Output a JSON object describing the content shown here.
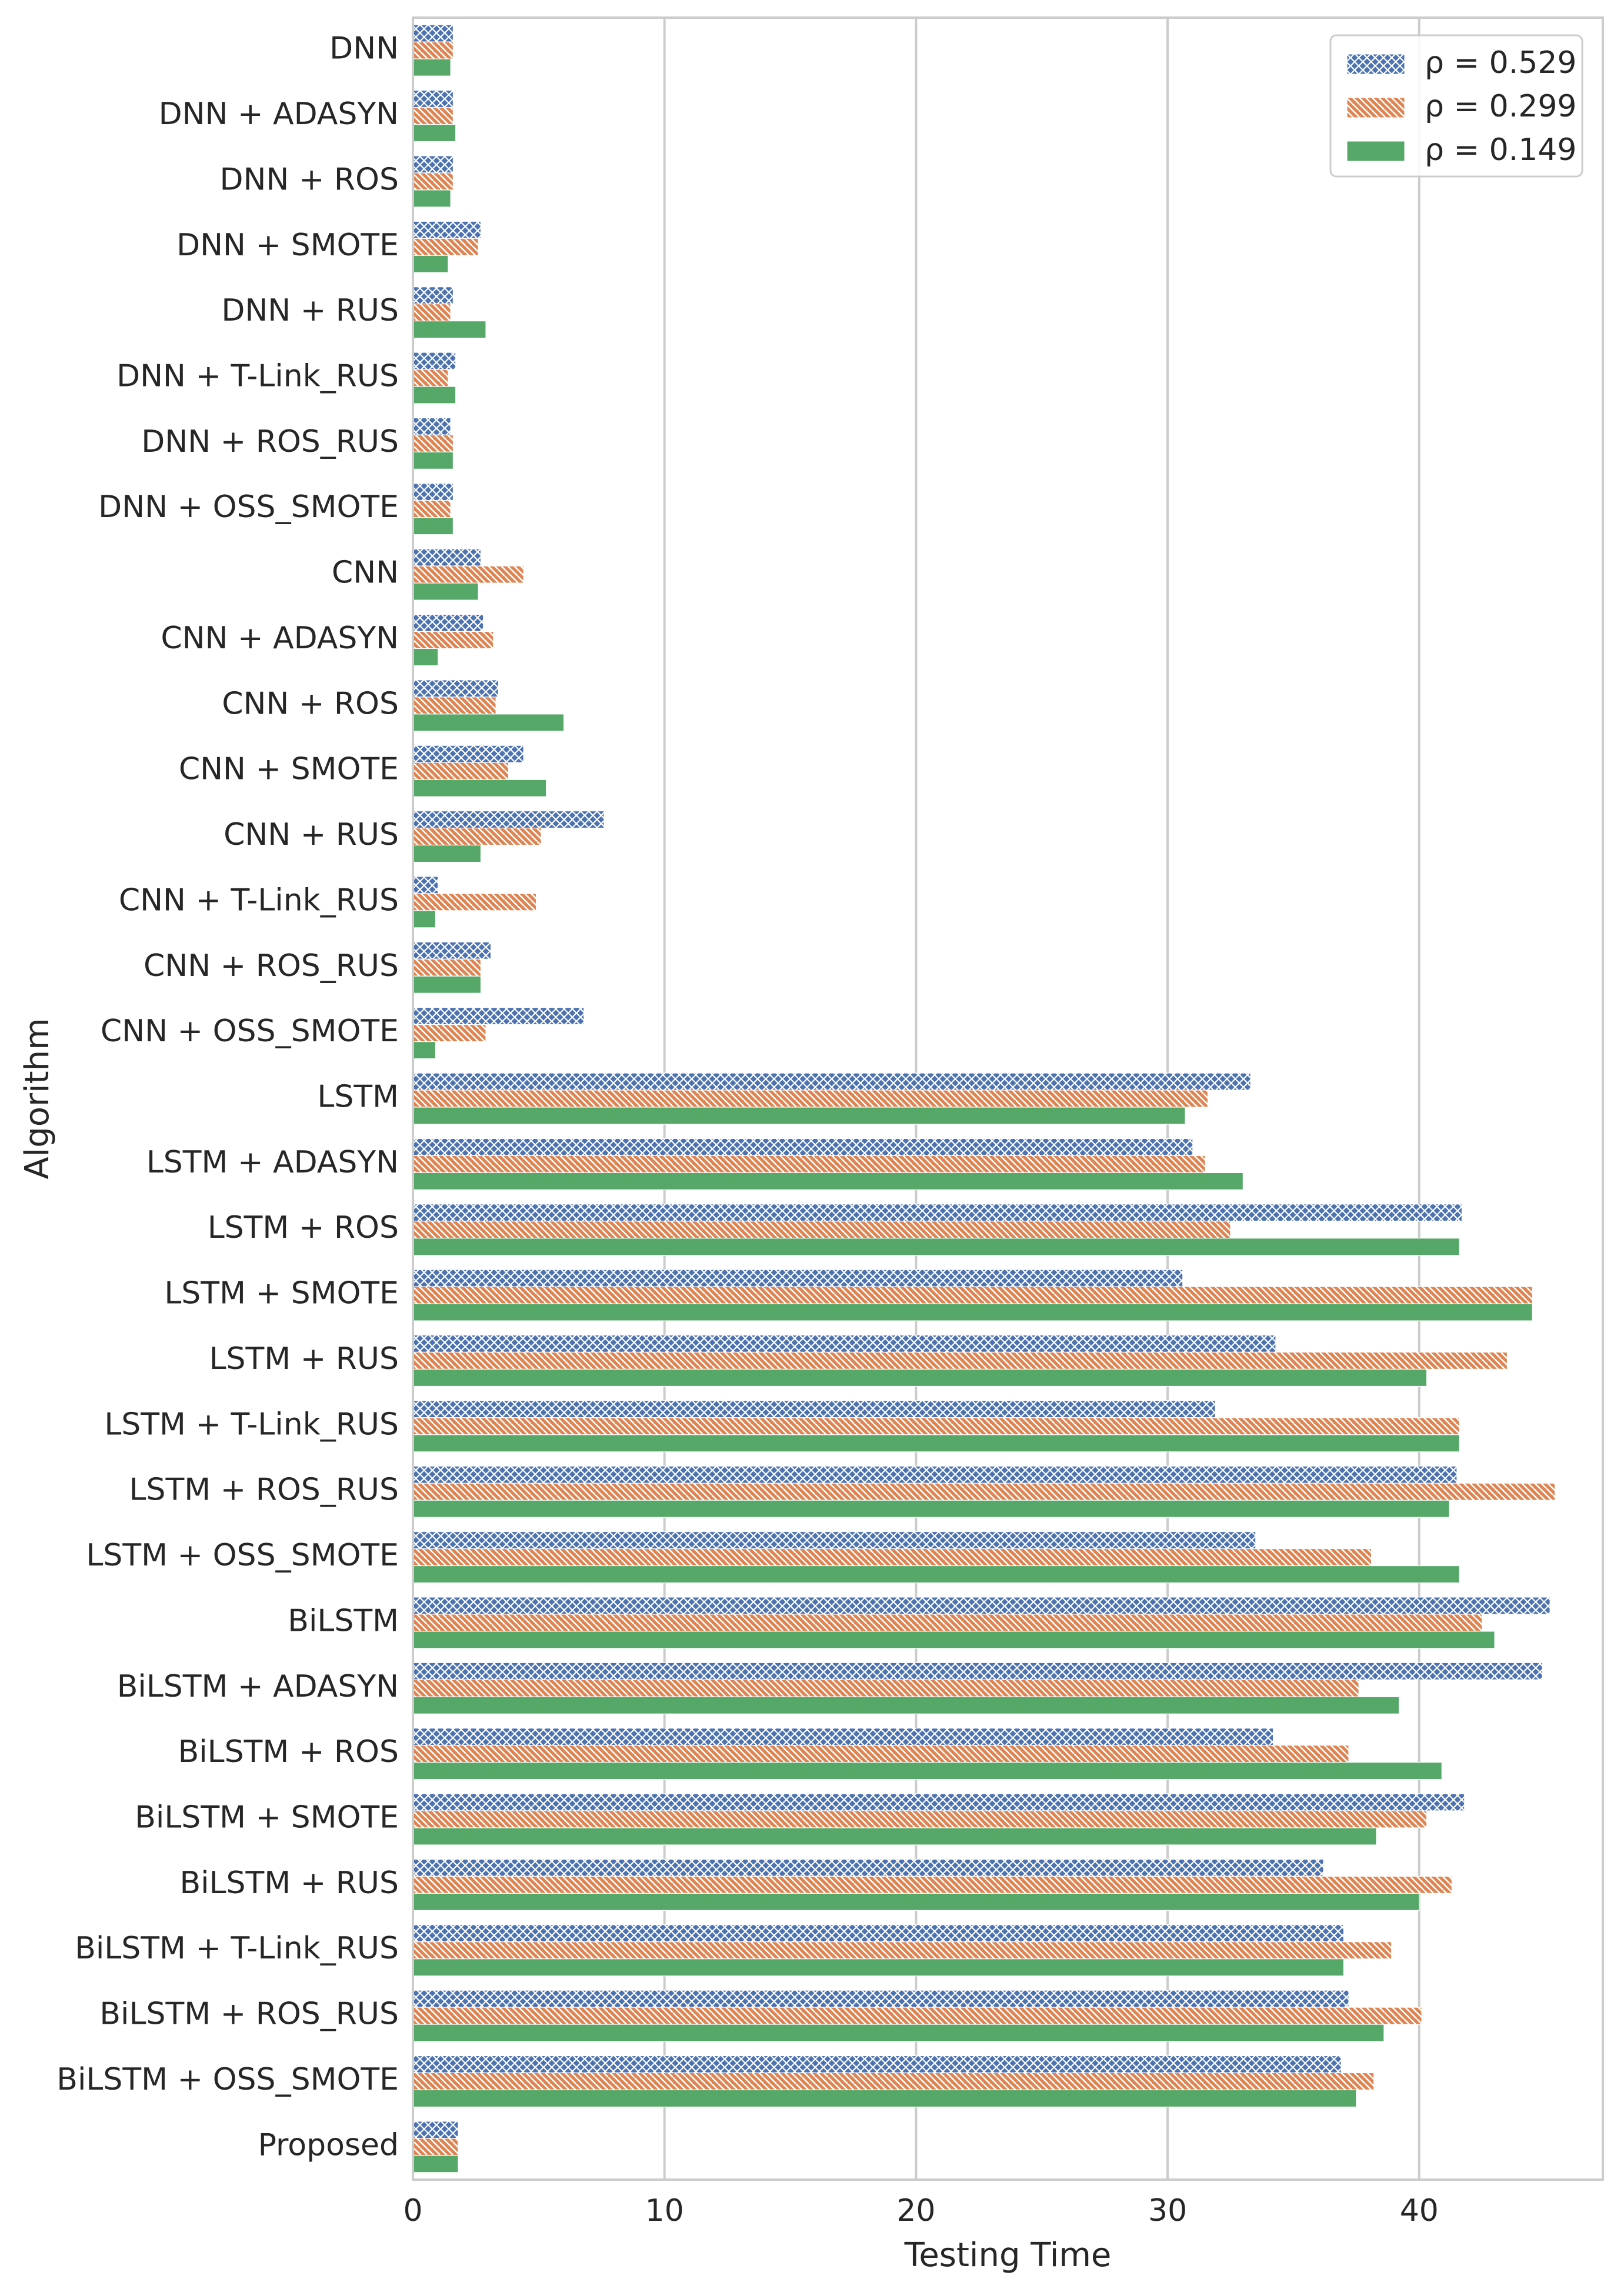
{
  "chart_data": {
    "type": "bar",
    "orientation": "horizontal",
    "xlabel": "Testing Time",
    "ylabel": "Algorithm",
    "xlim": [
      0,
      47.3
    ],
    "xticks": [
      0,
      10,
      20,
      30,
      40
    ],
    "grid": "vertical",
    "legend_position": "top-right",
    "categories": [
      "DNN",
      "DNN + ADASYN",
      "DNN + ROS",
      "DNN + SMOTE",
      "DNN + RUS",
      "DNN + T-Link_RUS",
      "DNN + ROS_RUS",
      "DNN + OSS_SMOTE",
      "CNN",
      "CNN + ADASYN",
      "CNN + ROS",
      "CNN + SMOTE",
      "CNN + RUS",
      "CNN + T-Link_RUS",
      "CNN + ROS_RUS",
      "CNN + OSS_SMOTE",
      "LSTM",
      "LSTM + ADASYN",
      "LSTM + ROS",
      "LSTM + SMOTE",
      "LSTM + RUS",
      "LSTM + T-Link_RUS",
      "LSTM + ROS_RUS",
      "LSTM + OSS_SMOTE",
      "BiLSTM",
      "BiLSTM + ADASYN",
      "BiLSTM + ROS",
      "BiLSTM + SMOTE",
      "BiLSTM + RUS",
      "BiLSTM + T-Link_RUS",
      "BiLSTM + ROS_RUS",
      "BiLSTM + OSS_SMOTE",
      "Proposed"
    ],
    "series": [
      {
        "name": "ρ = 0.529",
        "color": "#4c72b0",
        "pattern": "crosshatch",
        "values": [
          1.6,
          1.6,
          1.6,
          2.7,
          1.6,
          1.7,
          1.5,
          1.6,
          2.7,
          2.8,
          3.4,
          4.4,
          7.6,
          1.0,
          3.1,
          6.8,
          33.3,
          31.0,
          41.7,
          30.6,
          34.3,
          31.9,
          41.5,
          33.5,
          45.2,
          44.9,
          34.2,
          41.8,
          36.2,
          37.0,
          37.2,
          36.9,
          1.8
        ]
      },
      {
        "name": "ρ = 0.299",
        "color": "#dd8452",
        "pattern": "diagonal",
        "values": [
          1.6,
          1.6,
          1.6,
          2.6,
          1.5,
          1.4,
          1.6,
          1.5,
          4.4,
          3.2,
          3.3,
          3.8,
          5.1,
          4.9,
          2.7,
          2.9,
          31.6,
          31.5,
          32.5,
          44.5,
          43.5,
          41.6,
          45.4,
          38.1,
          42.5,
          37.6,
          37.2,
          40.3,
          41.3,
          38.9,
          40.1,
          38.2,
          1.8
        ]
      },
      {
        "name": "ρ = 0.149",
        "color": "#55a868",
        "pattern": "solid",
        "values": [
          1.5,
          1.7,
          1.5,
          1.4,
          2.9,
          1.7,
          1.6,
          1.6,
          2.6,
          1.0,
          6.0,
          5.3,
          2.7,
          0.9,
          2.7,
          0.9,
          30.7,
          33.0,
          41.6,
          44.5,
          40.3,
          41.6,
          41.2,
          41.6,
          43.0,
          39.2,
          40.9,
          38.3,
          40.0,
          37.0,
          38.6,
          37.5,
          1.8
        ]
      }
    ]
  }
}
